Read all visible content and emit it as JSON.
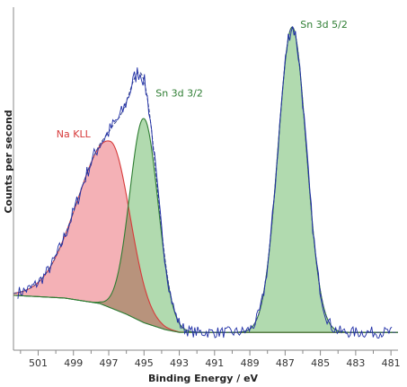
{
  "chart_data": {
    "type": "line",
    "title": "",
    "xlabel": "Binding Energy / eV",
    "ylabel": "Counts per second",
    "xlim": [
      502.4,
      480.6
    ],
    "x_reversed": true,
    "ylim": [
      0,
      100
    ],
    "y_tick_labels": false,
    "grid": false,
    "x_ticks": [
      501,
      499,
      497,
      495,
      493,
      491,
      489,
      487,
      485,
      483,
      481
    ],
    "components": [
      {
        "name": "Na KLL",
        "center": 496.9,
        "height": 48.5,
        "sigma_left": 1.85,
        "sigma_right": 1.1,
        "color": "#d73a3a",
        "fill": "#f3a8ae"
      },
      {
        "name": "Sn 3d 3/2",
        "center": 495.0,
        "height": 59.5,
        "sigma_left": 0.8,
        "sigma_right": 0.8,
        "color": "#2e7d32",
        "fill": "#a9d6a6"
      },
      {
        "name": "Sn 3d 5/2",
        "center": 486.6,
        "height": 89.0,
        "sigma_left": 0.8,
        "sigma_right": 0.8,
        "color": "#2e7d32",
        "fill": "#a9d6a6"
      }
    ],
    "overlap_fill": "#b8937c",
    "background": {
      "color": "#8a8a8a",
      "points": [
        [
          502.4,
          16.0
        ],
        [
          499.5,
          15.2
        ],
        [
          497.5,
          13.6
        ],
        [
          496.0,
          10.5
        ],
        [
          495.0,
          8.0
        ],
        [
          493.8,
          6.0
        ],
        [
          493.0,
          5.2
        ],
        [
          480.6,
          5.2
        ]
      ]
    },
    "envelope_color": "#3b4a8c",
    "raw_color": "#1f2ea6",
    "peak_labels": [
      {
        "text": "Na KLL",
        "x": 499.0,
        "y": 62,
        "color": "#d73a3a"
      },
      {
        "text": "Sn 3d 3/2",
        "x": 493.0,
        "y": 74,
        "color": "#2e7d32"
      },
      {
        "text": "Sn 3d 5/2",
        "x": 484.8,
        "y": 94,
        "color": "#2e7d32"
      }
    ]
  }
}
